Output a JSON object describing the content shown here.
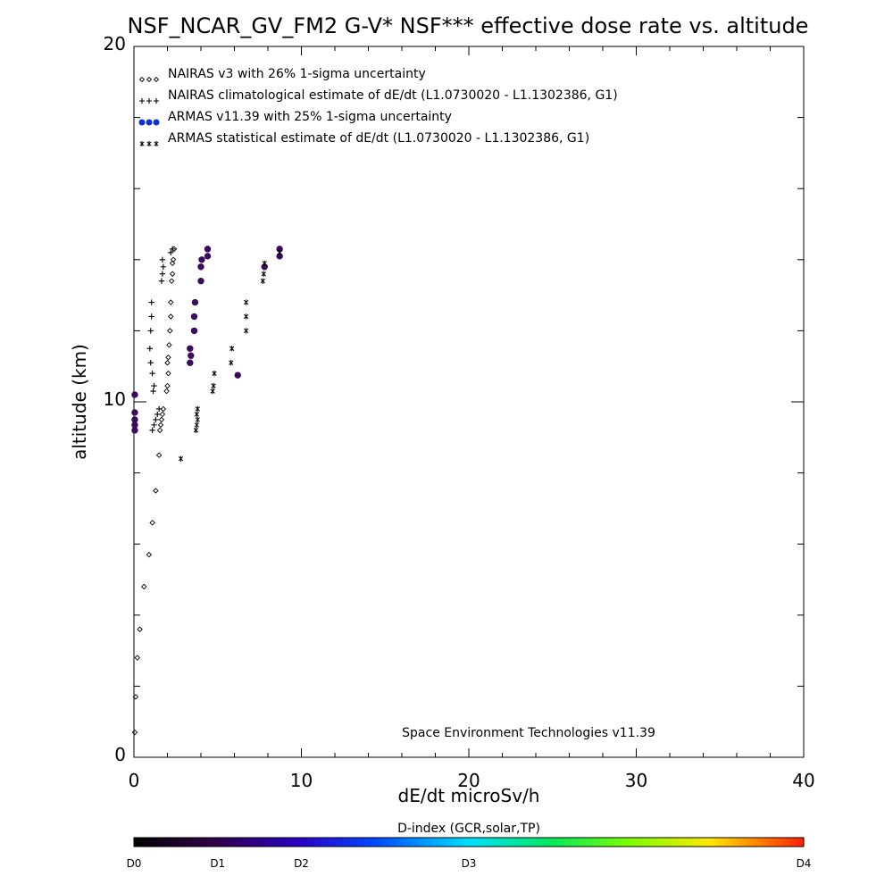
{
  "chart_data": {
    "type": "scatter",
    "title": "NSF_NCAR_GV_FM2 G-V* NSF*** effective dose rate vs. altitude",
    "xlabel": "dE/dt microSv/h",
    "ylabel": "altitude (km)",
    "xlim": [
      0,
      40
    ],
    "ylim": [
      0,
      20
    ],
    "x_ticks": [
      "0",
      "10",
      "20",
      "30",
      "40"
    ],
    "y_ticks": [
      "0",
      "10",
      "20"
    ],
    "grid": false,
    "legend_placement": "top-left",
    "credit": "Space Environment Technologies v11.39",
    "colorbar": {
      "title": "D-index (GCR,solar,TP)",
      "labels": [
        {
          "label": "D0",
          "value": 0
        },
        {
          "label": "D1",
          "value": 1
        },
        {
          "label": "D2",
          "value": 2
        },
        {
          "label": "D3",
          "value": 3
        },
        {
          "label": "D4",
          "value": 4
        }
      ]
    },
    "series": [
      {
        "name": "NAIRAS v3 with 26% 1-sigma uncertainty",
        "marker": "diamond",
        "color": "#000000",
        "points": [
          [
            0.05,
            0.7
          ],
          [
            0.1,
            1.7
          ],
          [
            0.2,
            2.8
          ],
          [
            0.35,
            3.6
          ],
          [
            0.6,
            4.8
          ],
          [
            0.9,
            5.7
          ],
          [
            1.1,
            6.6
          ],
          [
            1.3,
            7.5
          ],
          [
            1.5,
            8.5
          ],
          [
            1.55,
            9.2
          ],
          [
            1.6,
            9.35
          ],
          [
            1.65,
            9.5
          ],
          [
            1.7,
            9.65
          ],
          [
            1.75,
            9.8
          ],
          [
            1.95,
            10.3
          ],
          [
            2.0,
            10.45
          ],
          [
            2.05,
            10.8
          ],
          [
            2.0,
            11.1
          ],
          [
            2.05,
            11.25
          ],
          [
            2.1,
            11.6
          ],
          [
            2.15,
            12.0
          ],
          [
            2.2,
            12.4
          ],
          [
            2.2,
            12.8
          ],
          [
            2.25,
            13.4
          ],
          [
            2.3,
            13.6
          ],
          [
            2.3,
            13.9
          ],
          [
            2.35,
            14.0
          ],
          [
            2.4,
            14.3
          ]
        ]
      },
      {
        "name": "NAIRAS climatological estimate of dE/dt (L1.0730020 - L1.1302386, G1)",
        "marker": "plus",
        "color": "#000000",
        "points": [
          [
            1.1,
            9.2
          ],
          [
            1.2,
            9.35
          ],
          [
            1.3,
            9.5
          ],
          [
            1.4,
            9.65
          ],
          [
            1.5,
            9.8
          ],
          [
            1.15,
            10.3
          ],
          [
            1.2,
            10.45
          ],
          [
            1.1,
            10.8
          ],
          [
            1.0,
            11.1
          ],
          [
            0.95,
            11.5
          ],
          [
            1.0,
            12.0
          ],
          [
            1.05,
            12.4
          ],
          [
            1.05,
            12.8
          ],
          [
            1.65,
            13.4
          ],
          [
            1.7,
            13.6
          ],
          [
            1.75,
            13.8
          ],
          [
            1.7,
            14.0
          ],
          [
            2.2,
            14.2
          ],
          [
            2.3,
            14.3
          ]
        ]
      },
      {
        "name": "ARMAS v11.39 with 25% 1-sigma uncertainty",
        "marker": "dot",
        "color": "#3a0a5c",
        "points": [
          [
            0.05,
            9.2
          ],
          [
            0.05,
            9.35
          ],
          [
            0.05,
            9.5
          ],
          [
            0.05,
            9.7
          ],
          [
            0.05,
            10.2
          ],
          [
            3.35,
            11.1
          ],
          [
            3.4,
            11.3
          ],
          [
            3.35,
            11.5
          ],
          [
            3.6,
            12.0
          ],
          [
            3.6,
            12.4
          ],
          [
            3.65,
            12.8
          ],
          [
            4.0,
            13.4
          ],
          [
            4.0,
            13.8
          ],
          [
            4.05,
            14.0
          ],
          [
            4.4,
            14.1
          ],
          [
            4.4,
            14.3
          ],
          [
            6.2,
            10.75
          ],
          [
            7.8,
            13.8
          ],
          [
            8.7,
            14.1
          ],
          [
            8.7,
            14.3
          ]
        ]
      },
      {
        "name": "ARMAS statistical estimate of dE/dt (L1.0730020 - L1.1302386, G1)",
        "marker": "asterisk",
        "color": "#000000",
        "points": [
          [
            2.8,
            8.4
          ],
          [
            3.7,
            9.2
          ],
          [
            3.75,
            9.35
          ],
          [
            3.8,
            9.5
          ],
          [
            3.75,
            9.65
          ],
          [
            3.8,
            9.8
          ],
          [
            4.7,
            10.3
          ],
          [
            4.75,
            10.45
          ],
          [
            4.8,
            10.8
          ],
          [
            5.8,
            11.1
          ],
          [
            5.85,
            11.5
          ],
          [
            6.7,
            12.0
          ],
          [
            6.7,
            12.4
          ],
          [
            6.7,
            12.8
          ],
          [
            7.7,
            13.4
          ],
          [
            7.75,
            13.6
          ],
          [
            7.8,
            13.9
          ],
          [
            8.7,
            14.2
          ]
        ]
      }
    ]
  }
}
